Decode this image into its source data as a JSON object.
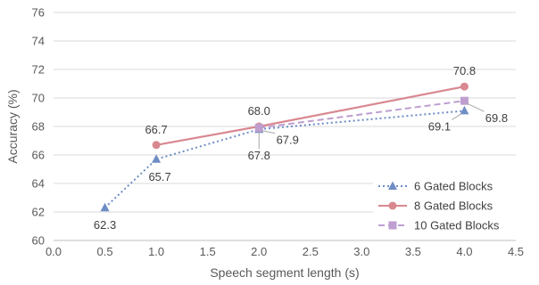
{
  "chart_data": {
    "type": "line",
    "xlabel": "Speech segment length (s)",
    "ylabel": "Accuracy (%)",
    "xlim": [
      0.0,
      4.5
    ],
    "ylim": [
      60,
      76
    ],
    "x_ticks": [
      "0.0",
      "0.5",
      "1.0",
      "1.5",
      "2.0",
      "2.5",
      "3.0",
      "3.5",
      "4.0",
      "4.5"
    ],
    "y_ticks": [
      "60",
      "62",
      "64",
      "66",
      "68",
      "70",
      "72",
      "74",
      "76"
    ],
    "grid": "horizontal",
    "legend_position": "bottom-right",
    "series": [
      {
        "name": "6 Gated Blocks",
        "color": "#6F8DC5",
        "line_style": "dotted",
        "marker": "triangle",
        "x": [
          0.5,
          1.0,
          2.0,
          4.0
        ],
        "y": [
          62.3,
          65.7,
          67.8,
          69.1
        ],
        "labels": [
          "62.3",
          "65.7",
          "67.8",
          "69.1"
        ]
      },
      {
        "name": "8 Gated Blocks",
        "color": "#D98890",
        "line_style": "solid",
        "marker": "circle",
        "x": [
          1.0,
          2.0,
          4.0
        ],
        "y": [
          66.7,
          68.0,
          70.8
        ],
        "labels": [
          "66.7",
          "68.0",
          "70.8"
        ]
      },
      {
        "name": "10 Gated Blocks",
        "color": "#BE9FD0",
        "line_style": "dashed",
        "marker": "square",
        "x": [
          2.0,
          4.0
        ],
        "y": [
          67.9,
          69.8
        ],
        "labels": [
          "67.9",
          "69.8"
        ]
      }
    ]
  }
}
